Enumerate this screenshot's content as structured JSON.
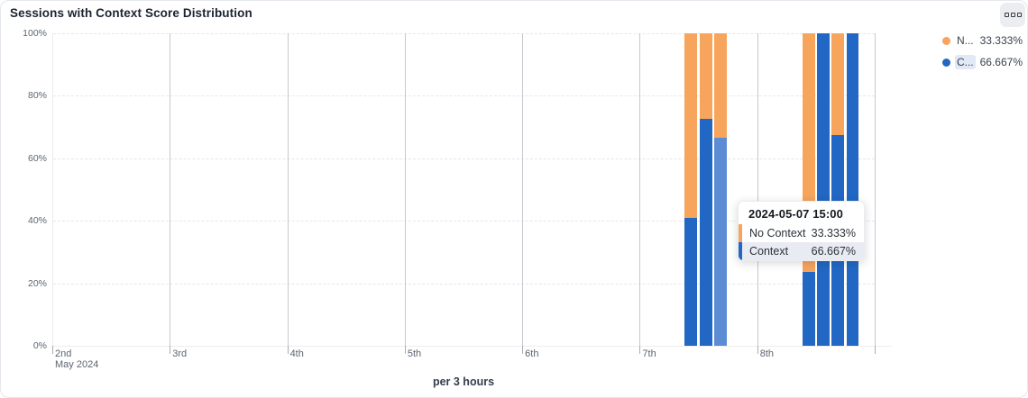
{
  "panel": {
    "title": "Sessions with Context Score Distribution",
    "options_icon": "grid-squares-icon"
  },
  "chart_data": {
    "type": "bar",
    "stacked": true,
    "unit": "%",
    "xlabel": "per 3 hours",
    "x_axis": {
      "tick_labels": [
        "2nd",
        "3rd",
        "4th",
        "5th",
        "6th",
        "7th",
        "8th"
      ],
      "secondary_label": "May 2024",
      "start_day": 2,
      "days_shown": 7
    },
    "y_axis": {
      "tick_labels": [
        "0%",
        "20%",
        "40%",
        "60%",
        "80%",
        "100%"
      ],
      "min": 0,
      "max": 100,
      "grid": "dashed"
    },
    "colors": {
      "context": "#2267c3",
      "context_highlight": "#5b8cd4",
      "no_context": "#f7a45c"
    },
    "legend": {
      "position": "top-right",
      "items": [
        {
          "name": "N...",
          "value": "33.333%",
          "series": "No Context",
          "color": "#f7a45c",
          "highlighted": false
        },
        {
          "name": "C...",
          "value": "66.667%",
          "series": "Context",
          "color": "#2267c3",
          "highlighted": true
        }
      ]
    },
    "series_names": [
      "Context",
      "No Context"
    ],
    "bars": [
      {
        "time": "2024-05-07 09:00",
        "day": 7,
        "hour": 9,
        "context_pct": 41,
        "no_context_pct": 59,
        "highlighted": false
      },
      {
        "time": "2024-05-07 12:00",
        "day": 7,
        "hour": 12,
        "context_pct": 72.7,
        "no_context_pct": 27.3,
        "highlighted": false
      },
      {
        "time": "2024-05-07 15:00",
        "day": 7,
        "hour": 15,
        "context_pct": 66.667,
        "no_context_pct": 33.333,
        "highlighted": true
      },
      {
        "time": "2024-05-08 09:00",
        "day": 8,
        "hour": 9,
        "context_pct": 23.5,
        "no_context_pct": 76.5,
        "highlighted": false
      },
      {
        "time": "2024-05-08 12:00",
        "day": 8,
        "hour": 12,
        "context_pct": 100,
        "no_context_pct": 0,
        "highlighted": false
      },
      {
        "time": "2024-05-08 15:00",
        "day": 8,
        "hour": 15,
        "context_pct": 67.5,
        "no_context_pct": 32.5,
        "highlighted": false
      },
      {
        "time": "2024-05-08 18:00",
        "day": 8,
        "hour": 18,
        "context_pct": 100,
        "no_context_pct": 0,
        "highlighted": false
      }
    ]
  },
  "tooltip": {
    "title": "2024-05-07 15:00",
    "rows": [
      {
        "label": "No Context",
        "value": "33.333%",
        "color": "#f7a45c",
        "highlighted": false
      },
      {
        "label": "Context",
        "value": "66.667%",
        "color": "#2267c3",
        "highlighted": true
      }
    ]
  }
}
